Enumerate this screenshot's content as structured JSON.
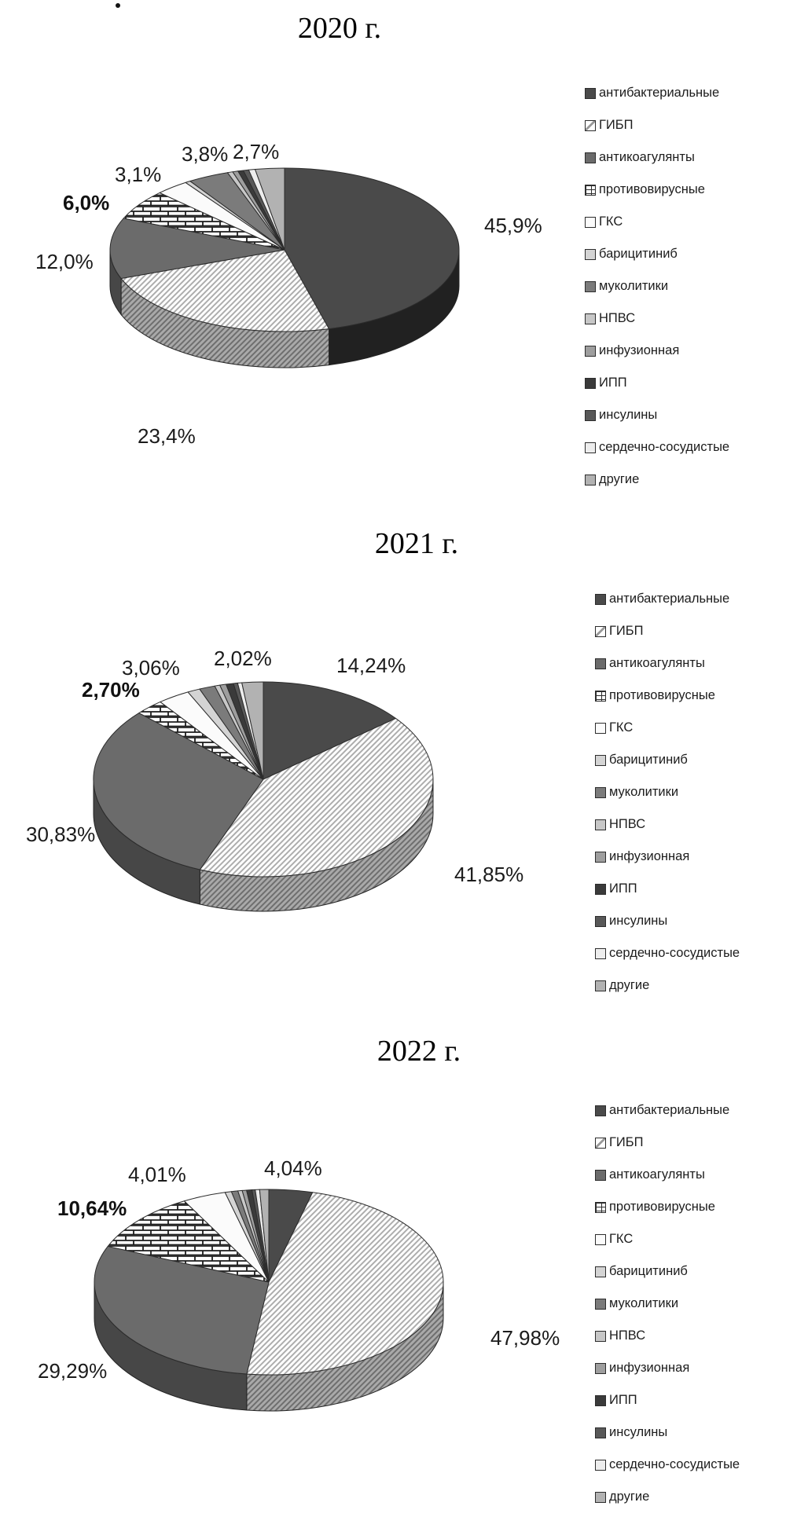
{
  "page": {
    "stray_mark": "."
  },
  "categories": [
    "антибактериальные",
    "ГИБП",
    "антикоагулянты",
    "противовирусные",
    "ГКС",
    "барицитиниб",
    "муколитики",
    "НПВС",
    "инфузионная",
    "ИПП",
    "инсулины",
    "сердечно-сосудистые",
    "другие"
  ],
  "style": {
    "label_color": "#1b1b1b",
    "fills": [
      {
        "type": "solid",
        "top": "#4a4a4a",
        "side": "#212121"
      },
      {
        "type": "hatch",
        "top": "#ffffff",
        "hatch_line": "#adadad",
        "side": "#a9a9a9",
        "side_line": "#6e6e6e"
      },
      {
        "type": "solid",
        "top": "#6b6b6b",
        "side": "#474747"
      },
      {
        "type": "brick",
        "top": "#ffffff",
        "brick_line": "#1c1c1c",
        "side": "#8a8a8a"
      },
      {
        "type": "solid",
        "top": "#fbfbfb",
        "side": "#cfcfcf"
      },
      {
        "type": "solid",
        "top": "#d4d4d4",
        "side": "#b0b0b0"
      },
      {
        "type": "solid",
        "top": "#7b7b7b",
        "side": "#565656"
      },
      {
        "type": "solid",
        "top": "#c7c7c7",
        "side": "#a2a2a2"
      },
      {
        "type": "solid",
        "top": "#9e9e9e",
        "side": "#7a7a7a"
      },
      {
        "type": "solid",
        "top": "#3a3a3a",
        "side": "#222222"
      },
      {
        "type": "solid",
        "top": "#585858",
        "side": "#3a3a3a"
      },
      {
        "type": "solid",
        "top": "#ededed",
        "side": "#c9c9c9"
      },
      {
        "type": "solid",
        "top": "#b2b2b2",
        "side": "#8e8e8e"
      }
    ]
  },
  "chart_data": [
    {
      "type": "pie",
      "title": "2020 г.",
      "legend_position": "right",
      "slices": [
        {
          "name": "антибактериальные",
          "value": 45.9,
          "label": "45,9%"
        },
        {
          "name": "ГИБП",
          "value": 23.4,
          "label": "23,4%"
        },
        {
          "name": "антикоагулянты",
          "value": 12.0,
          "label": "12,0%"
        },
        {
          "name": "противовирусные",
          "value": 6.0,
          "label": "6,0%",
          "bold": true
        },
        {
          "name": "ГКС",
          "value": 3.1,
          "label": "3,1%"
        },
        {
          "name": "барицитиниб",
          "value": 0.5,
          "label": null,
          "estimated": true
        },
        {
          "name": "муколитики",
          "value": 3.8,
          "label": "3,8%"
        },
        {
          "name": "НПВС",
          "value": 0.5,
          "label": null,
          "estimated": true
        },
        {
          "name": "инфузионная",
          "value": 0.5,
          "label": null,
          "estimated": true
        },
        {
          "name": "ИПП",
          "value": 0.5,
          "label": null,
          "estimated": true
        },
        {
          "name": "инсулины",
          "value": 0.5,
          "label": null,
          "estimated": true
        },
        {
          "name": "сердечно-сосудистые",
          "value": 0.6,
          "label": null,
          "estimated": true
        },
        {
          "name": "другие",
          "value": 2.7,
          "label": "2,7%"
        }
      ]
    },
    {
      "type": "pie",
      "title": "2021 г.",
      "legend_position": "right",
      "slices": [
        {
          "name": "антибактериальные",
          "value": 14.24,
          "label": "14,24%"
        },
        {
          "name": "ГИБП",
          "value": 41.85,
          "label": "41,85%"
        },
        {
          "name": "антикоагулянты",
          "value": 30.83,
          "label": "30,83%"
        },
        {
          "name": "противовирусные",
          "value": 2.7,
          "label": "2,70%",
          "bold": true
        },
        {
          "name": "ГКС",
          "value": 3.06,
          "label": "3,06%"
        },
        {
          "name": "барицитиниб",
          "value": 1.2,
          "label": null,
          "estimated": true
        },
        {
          "name": "муколитики",
          "value": 1.5,
          "label": null,
          "estimated": true
        },
        {
          "name": "НПВС",
          "value": 0.5,
          "label": null,
          "estimated": true
        },
        {
          "name": "инфузионная",
          "value": 0.6,
          "label": null,
          "estimated": true
        },
        {
          "name": "ИПП",
          "value": 0.7,
          "label": null,
          "estimated": true
        },
        {
          "name": "инсулины",
          "value": 0.4,
          "label": null,
          "estimated": true
        },
        {
          "name": "сердечно-сосудистые",
          "value": 0.4,
          "label": null,
          "estimated": true
        },
        {
          "name": "другие",
          "value": 2.02,
          "label": "2,02%"
        }
      ]
    },
    {
      "type": "pie",
      "title": "2022 г.",
      "legend_position": "right",
      "slices": [
        {
          "name": "антибактериальные",
          "value": 4.04,
          "label": "4,04%"
        },
        {
          "name": "ГИБП",
          "value": 47.98,
          "label": "47,98%"
        },
        {
          "name": "антикоагулянты",
          "value": 29.29,
          "label": "29,29%"
        },
        {
          "name": "противовирусные",
          "value": 10.64,
          "label": "10,64%",
          "bold": true
        },
        {
          "name": "ГКС",
          "value": 4.01,
          "label": "4,01%"
        },
        {
          "name": "барицитиниб",
          "value": 0.6,
          "label": null,
          "estimated": true
        },
        {
          "name": "муколитики",
          "value": 0.6,
          "label": null,
          "estimated": true
        },
        {
          "name": "НПВС",
          "value": 0.4,
          "label": null,
          "estimated": true
        },
        {
          "name": "инфузионная",
          "value": 0.4,
          "label": null,
          "estimated": true
        },
        {
          "name": "ИПП",
          "value": 0.5,
          "label": null,
          "estimated": true
        },
        {
          "name": "инсулины",
          "value": 0.3,
          "label": null,
          "estimated": true
        },
        {
          "name": "сердечно-сосудистые",
          "value": 0.4,
          "label": null,
          "estimated": true
        },
        {
          "name": "другие",
          "value": 0.84,
          "label": null,
          "estimated": true
        }
      ]
    }
  ]
}
